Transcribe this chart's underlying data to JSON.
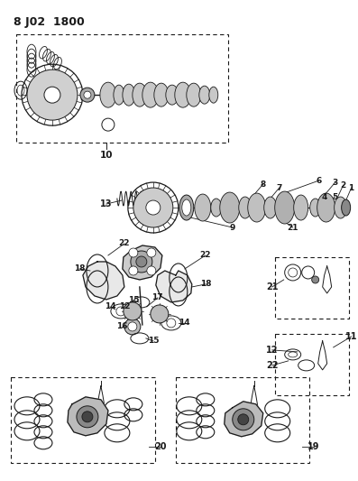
{
  "title": "8 J02  1800",
  "bg_color": "#ffffff",
  "lc": "#1a1a1a",
  "fig_width": 3.97,
  "fig_height": 5.33,
  "dpi": 100
}
